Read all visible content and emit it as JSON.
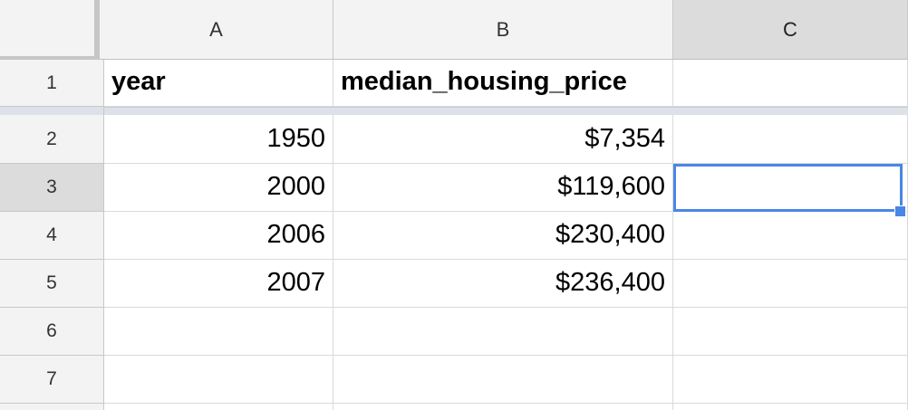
{
  "columns": [
    "A",
    "B",
    "C"
  ],
  "rows": [
    "1",
    "2",
    "3",
    "4",
    "5",
    "6",
    "7"
  ],
  "header_row": {
    "a": "year",
    "b": "median_housing_price",
    "c": ""
  },
  "data_rows": [
    {
      "a": "1950",
      "b": "$7,354",
      "c": ""
    },
    {
      "a": "2000",
      "b": "$119,600",
      "c": ""
    },
    {
      "a": "2006",
      "b": "$230,400",
      "c": ""
    },
    {
      "a": "2007",
      "b": "$236,400",
      "c": ""
    },
    {
      "a": "",
      "b": "",
      "c": ""
    },
    {
      "a": "",
      "b": "",
      "c": ""
    }
  ],
  "selected_cell": "C3",
  "colors": {
    "selection": "#4a86e8",
    "header_bg": "#f3f3f3",
    "selected_header_bg": "#dcdcdc"
  }
}
